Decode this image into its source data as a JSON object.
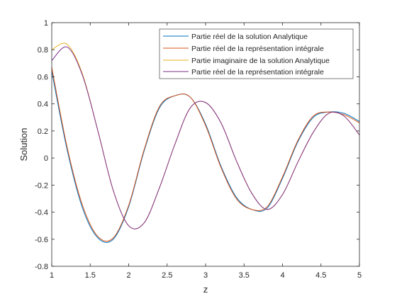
{
  "chart_data": {
    "type": "line",
    "title": "",
    "xlabel": "z",
    "ylabel": "Solution",
    "xlim": [
      1,
      5
    ],
    "ylim": [
      -0.8,
      1
    ],
    "xticks": [
      "1",
      "1.5",
      "2",
      "2.5",
      "3",
      "3.5",
      "4",
      "4.5",
      "5"
    ],
    "yticks": [
      "-0.8",
      "-0.6",
      "-0.4",
      "-0.2",
      "0",
      "0.2",
      "0.4",
      "0.6",
      "0.8",
      "1"
    ],
    "grid": false,
    "legend_position": "top-right",
    "x": [
      1.0,
      1.2,
      1.4,
      1.6,
      1.8,
      2.0,
      2.2,
      2.4,
      2.6,
      2.8,
      3.0,
      3.2,
      3.4,
      3.6,
      3.8,
      4.0,
      4.2,
      4.4,
      4.6,
      4.8,
      5.0
    ],
    "series": [
      {
        "name": "Partie réel de la solution Analytique",
        "color": "#0072BD",
        "values": [
          0.64,
          0.06,
          -0.37,
          -0.59,
          -0.6,
          -0.36,
          0.05,
          0.37,
          0.46,
          0.45,
          0.25,
          -0.06,
          -0.29,
          -0.38,
          -0.37,
          -0.15,
          0.12,
          0.3,
          0.34,
          0.33,
          0.27
        ]
      },
      {
        "name": "Partie réel de la représentation intégrale",
        "color": "#D95319",
        "values": [
          0.67,
          0.08,
          -0.35,
          -0.58,
          -0.59,
          -0.35,
          0.06,
          0.38,
          0.46,
          0.45,
          0.24,
          -0.07,
          -0.3,
          -0.38,
          -0.36,
          -0.14,
          0.13,
          0.31,
          0.34,
          0.32,
          0.26
        ]
      },
      {
        "name": "Partie imaginaire de la solution Analytique",
        "color": "#EDB120",
        "values": [
          0.8,
          0.84,
          0.62,
          0.2,
          -0.24,
          -0.5,
          -0.48,
          -0.22,
          0.1,
          0.37,
          0.41,
          0.26,
          -0.02,
          -0.26,
          -0.38,
          -0.27,
          -0.03,
          0.19,
          0.33,
          0.31,
          0.17
        ]
      },
      {
        "name": "Partie réel de la représentation intégrale",
        "color": "#7E2F8E",
        "values": [
          0.72,
          0.82,
          0.61,
          0.2,
          -0.24,
          -0.5,
          -0.48,
          -0.22,
          0.1,
          0.37,
          0.41,
          0.26,
          -0.02,
          -0.26,
          -0.38,
          -0.27,
          -0.03,
          0.19,
          0.33,
          0.31,
          0.17
        ]
      }
    ]
  }
}
